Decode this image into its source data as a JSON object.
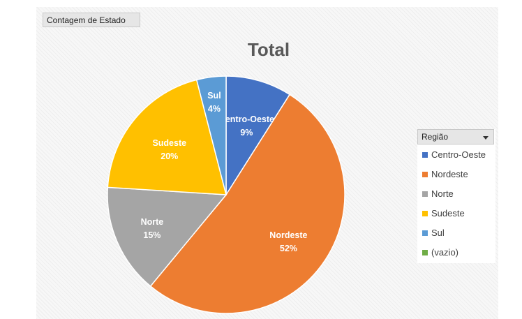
{
  "field_button": {
    "label": "Contagem  de Estado"
  },
  "chart_data": {
    "type": "pie",
    "title": "Total",
    "slices": [
      {
        "name": "Centro-Oeste",
        "value": 9,
        "label": "9%",
        "color": "#4472c4"
      },
      {
        "name": "Nordeste",
        "value": 52,
        "label": "52%",
        "color": "#ed7d31"
      },
      {
        "name": "Norte",
        "value": 15,
        "label": "15%",
        "color": "#a5a5a5"
      },
      {
        "name": "Sudeste",
        "value": 20,
        "label": "20%",
        "color": "#ffc000"
      },
      {
        "name": "Sul",
        "value": 4,
        "label": "4%",
        "color": "#5b9bd5"
      }
    ],
    "legend": {
      "title": "Região",
      "placement": "right",
      "items": [
        {
          "label": "Centro-Oeste",
          "color": "#4472c4"
        },
        {
          "label": "Nordeste",
          "color": "#ed7d31"
        },
        {
          "label": "Norte",
          "color": "#a5a5a5"
        },
        {
          "label": "Sudeste",
          "color": "#ffc000"
        },
        {
          "label": "Sul",
          "color": "#5b9bd5"
        },
        {
          "label": "(vazio)",
          "color": "#70ad47"
        }
      ]
    }
  }
}
